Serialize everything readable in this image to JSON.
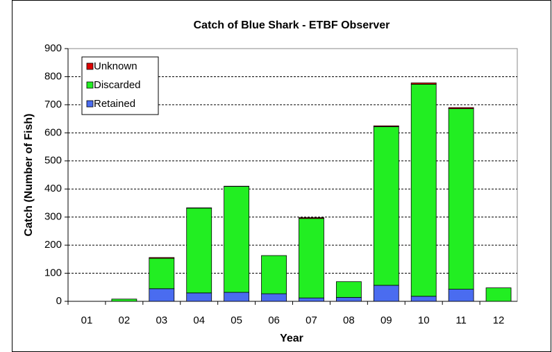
{
  "chart_data": {
    "type": "stacked_bar",
    "title": "Catch of Blue Shark - ETBF Observer",
    "x_label": "Year",
    "y_label": "Catch (Number of Fish)",
    "categories": [
      "01",
      "02",
      "03",
      "04",
      "05",
      "06",
      "07",
      "08",
      "09",
      "10",
      "11",
      "12"
    ],
    "series": [
      {
        "name": "Retained",
        "color": "#4a6cf0",
        "values": [
          0,
          0,
          45,
          30,
          32,
          27,
          12,
          14,
          57,
          18,
          43,
          0
        ]
      },
      {
        "name": "Discarded",
        "color": "#22ee22",
        "values": [
          0,
          8,
          108,
          302,
          377,
          136,
          283,
          56,
          565,
          755,
          643,
          48
        ]
      },
      {
        "name": "Unknown",
        "color": "#dd0000",
        "values": [
          0,
          0,
          3,
          1,
          1,
          0,
          3,
          0,
          3,
          5,
          4,
          0
        ]
      }
    ],
    "ylim": [
      0,
      900
    ],
    "yticks": [
      0,
      100,
      200,
      300,
      400,
      500,
      600,
      700,
      800,
      900
    ],
    "grid": true,
    "legend": "top-left"
  }
}
